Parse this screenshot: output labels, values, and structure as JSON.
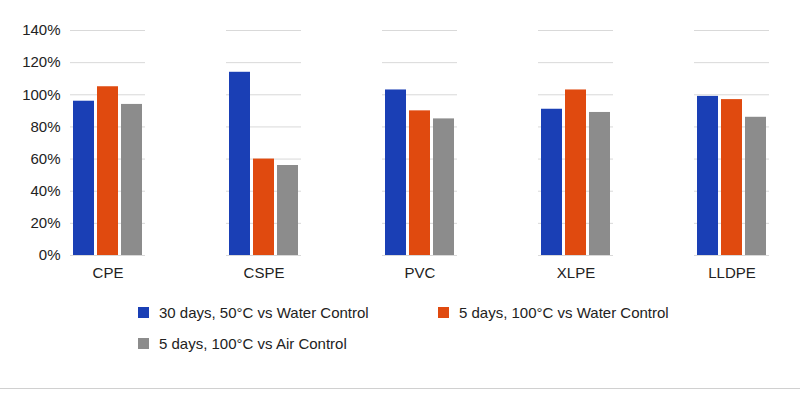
{
  "chart_data": {
    "type": "bar",
    "categories": [
      "CPE",
      "CSPE",
      "PVC",
      "XLPE",
      "LLDPE"
    ],
    "series": [
      {
        "name": "30 days, 50°C vs Water Control",
        "color": "#1a3fb5",
        "values": [
          96,
          114,
          103,
          91,
          99
        ]
      },
      {
        "name": "5 days, 100°C vs Water Control",
        "color": "#e04a0f",
        "values": [
          105,
          60,
          90,
          103,
          97
        ]
      },
      {
        "name": "5 days, 100°C vs Air Control",
        "color": "#8c8c8c",
        "values": [
          94,
          56,
          85,
          89,
          86
        ]
      }
    ],
    "ylim": [
      0,
      140
    ],
    "yticks": [
      {
        "value": 0,
        "label": "0%"
      },
      {
        "value": 20,
        "label": "20%"
      },
      {
        "value": 40,
        "label": "40%"
      },
      {
        "value": 60,
        "label": "60%"
      },
      {
        "value": 80,
        "label": "80%"
      },
      {
        "value": 100,
        "label": "100%"
      },
      {
        "value": 120,
        "label": "120%"
      },
      {
        "value": 140,
        "label": "140%"
      }
    ],
    "grid": true,
    "legend": "bottom"
  }
}
